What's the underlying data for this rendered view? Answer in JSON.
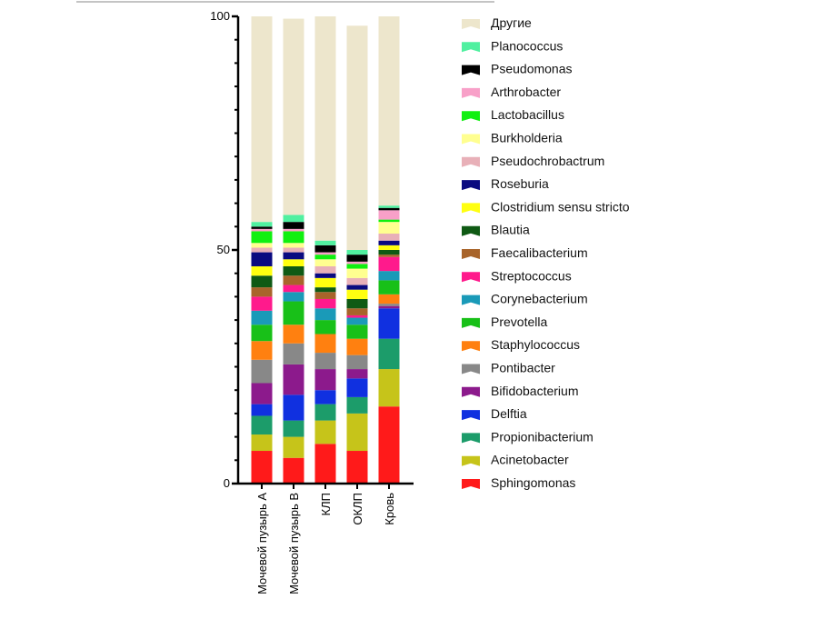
{
  "chart_data": {
    "type": "bar",
    "stacked": true,
    "title": "",
    "xlabel": "",
    "ylabel": "",
    "ylim": [
      0,
      100
    ],
    "yticks": [
      0,
      50,
      100
    ],
    "legend_position": "right",
    "categories": [
      "Мочевой пузырь А",
      "Мочевой пузырь В",
      "КЛП",
      "ОКЛП",
      "Кровь"
    ],
    "series": [
      {
        "name": "Sphingomonas",
        "color": "#ff1a1a",
        "values": [
          7.0,
          5.5,
          8.5,
          7.0,
          16.5
        ]
      },
      {
        "name": "Acinetobacter",
        "color": "#c6c41a",
        "values": [
          3.5,
          4.5,
          5.0,
          8.0,
          8.0
        ]
      },
      {
        "name": "Propionibacterium",
        "color": "#1c9c6a",
        "values": [
          4.0,
          3.5,
          3.5,
          3.5,
          6.5
        ]
      },
      {
        "name": "Delftia",
        "color": "#1030e0",
        "values": [
          2.5,
          5.5,
          3.0,
          4.0,
          6.5
        ]
      },
      {
        "name": "Bifidobacterium",
        "color": "#8c1a8c",
        "values": [
          4.5,
          6.5,
          4.5,
          2.0,
          0.5
        ]
      },
      {
        "name": "Pontibacter",
        "color": "#888888",
        "values": [
          5.0,
          4.5,
          3.5,
          3.0,
          0.5
        ]
      },
      {
        "name": "Staphylococcus",
        "color": "#ff8010",
        "values": [
          4.0,
          4.0,
          4.0,
          3.5,
          2.0
        ]
      },
      {
        "name": "Prevotella",
        "color": "#18c018",
        "values": [
          3.5,
          5.0,
          3.0,
          3.0,
          3.0
        ]
      },
      {
        "name": "Corynebacterium",
        "color": "#1a9ab8",
        "values": [
          3.0,
          2.0,
          2.5,
          1.5,
          2.0
        ]
      },
      {
        "name": "Streptococcus",
        "color": "#ff1a8c",
        "values": [
          3.0,
          1.5,
          2.0,
          0.5,
          3.0
        ]
      },
      {
        "name": "Faecalibacterium",
        "color": "#a8642a",
        "values": [
          2.0,
          2.0,
          1.5,
          1.5,
          0.5
        ]
      },
      {
        "name": "Blautia",
        "color": "#0f5a14",
        "values": [
          2.5,
          2.0,
          1.0,
          2.0,
          1.0
        ]
      },
      {
        "name": "Clostridium sensu stricto",
        "color": "#ffff10",
        "values": [
          2.0,
          1.5,
          2.0,
          2.0,
          1.0
        ]
      },
      {
        "name": "Roseburia",
        "color": "#0a0a80",
        "values": [
          3.0,
          1.5,
          1.0,
          1.0,
          1.0
        ]
      },
      {
        "name": "Pseudochrobactrum",
        "color": "#e8b0b8",
        "values": [
          1.0,
          1.0,
          1.5,
          1.5,
          1.5
        ]
      },
      {
        "name": "Burkholderia",
        "color": "#ffff90",
        "values": [
          1.0,
          1.0,
          1.5,
          2.0,
          2.5
        ]
      },
      {
        "name": "Lactobacillus",
        "color": "#10f010",
        "values": [
          2.5,
          2.5,
          1.0,
          1.0,
          0.5
        ]
      },
      {
        "name": "Arthrobacter",
        "color": "#f8a0c8",
        "values": [
          0.5,
          0.5,
          0.5,
          0.5,
          2.0
        ]
      },
      {
        "name": "Pseudomonas",
        "color": "#000000",
        "values": [
          0.5,
          1.5,
          1.5,
          1.5,
          0.5
        ]
      },
      {
        "name": "Planococcus",
        "color": "#50f0a0",
        "values": [
          1.0,
          1.5,
          1.0,
          1.0,
          0.5
        ]
      },
      {
        "name": "Другие",
        "color": "#ede6cc",
        "values": [
          44.0,
          42.0,
          48.0,
          48.0,
          40.5
        ]
      }
    ]
  }
}
